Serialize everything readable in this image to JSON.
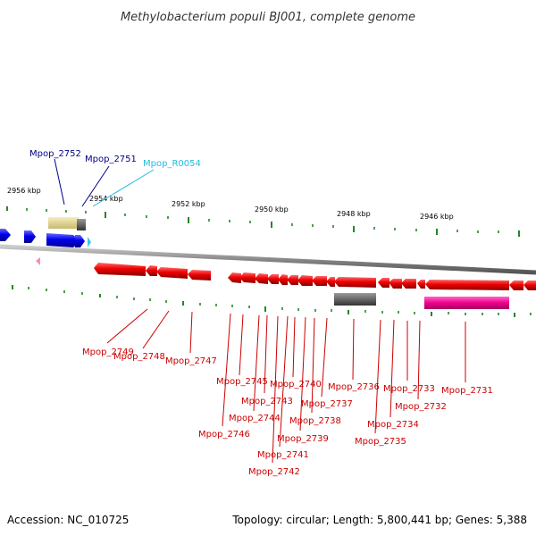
{
  "title": "Methylobacterium populi BJ001, complete genome",
  "footer": {
    "accession": "Accession: NC_010725",
    "summary": "Topology: circular; Length: 5,800,441 bp; Genes: 5,388"
  },
  "scale_labels": [
    "2956 kbp",
    "2954 kbp",
    "2952 kbp",
    "2950 kbp",
    "2948 kbp",
    "2946 kbp"
  ],
  "top_labels": [
    {
      "text": "Mpop_2752",
      "color": "#00008b"
    },
    {
      "text": "Mpop_2751",
      "color": "#00008b"
    },
    {
      "text": "Mpop_R0054",
      "color": "#22bbdd"
    }
  ],
  "bottom_labels": [
    "Mpop_2749",
    "Mpop_2748",
    "Mpop_2747",
    "Mpop_2746",
    "Mpop_2745",
    "Mpop_2744",
    "Mpop_2743",
    "Mpop_2742",
    "Mpop_2741",
    "Mpop_2740",
    "Mpop_2739",
    "Mpop_2738",
    "Mpop_2737",
    "Mpop_2736",
    "Mpop_2735",
    "Mpop_2734",
    "Mpop_2733",
    "Mpop_2732",
    "Mpop_2731"
  ],
  "colors": {
    "forward_cds": "#0000ee",
    "reverse_cds": "#ee0000",
    "rna": "#33ccee",
    "backbone": "#888888",
    "gc_tick": "#228822",
    "bottom_label": "#cc0000"
  }
}
